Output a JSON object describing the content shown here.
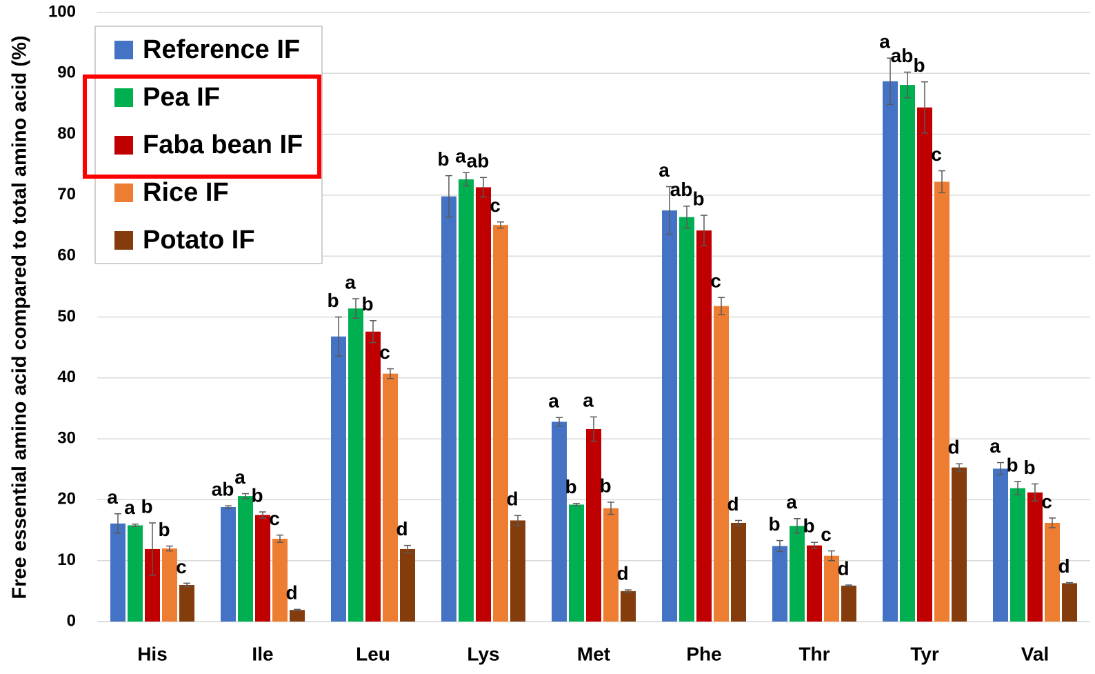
{
  "chart_data": {
    "type": "bar",
    "y_label": "Free essential amino acid compared to total amino acid (%)",
    "categories": [
      "His",
      "Ile",
      "Leu",
      "Lys",
      "Met",
      "Phe",
      "Thr",
      "Tyr",
      "Val"
    ],
    "series": [
      {
        "name": "Reference IF",
        "color": "#4472c4",
        "values": [
          16.1,
          18.8,
          46.8,
          69.8,
          32.8,
          67.5,
          12.4,
          88.7,
          25.1
        ],
        "errors": [
          1.6,
          0.2,
          3.2,
          3.4,
          0.7,
          3.9,
          0.9,
          3.8,
          1.0
        ],
        "letters": [
          "a",
          "ab",
          "b",
          "b",
          "a",
          "a",
          "b",
          "a",
          "a"
        ]
      },
      {
        "name": "Pea IF",
        "color": "#00b050",
        "values": [
          15.8,
          20.6,
          51.4,
          72.6,
          19.2,
          66.4,
          15.7,
          88.1,
          21.9
        ],
        "errors": [
          0.2,
          0.4,
          1.6,
          1.1,
          0.2,
          1.8,
          1.2,
          2.1,
          1.1
        ],
        "letters": [
          "a",
          "a",
          "a",
          "a",
          "b",
          "ab",
          "a",
          "ab",
          "b"
        ]
      },
      {
        "name": "Faba bean IF",
        "color": "#c00000",
        "values": [
          11.9,
          17.5,
          47.6,
          71.3,
          31.6,
          64.2,
          12.5,
          84.4,
          21.2
        ],
        "errors": [
          4.3,
          0.5,
          1.8,
          1.6,
          2.0,
          2.5,
          0.5,
          4.2,
          1.4
        ],
        "letters": [
          "b",
          "b",
          "b",
          "ab",
          "a",
          "b",
          "b",
          "b",
          "b"
        ]
      },
      {
        "name": "Rice IF",
        "color": "#ed7d31",
        "values": [
          12.0,
          13.6,
          40.7,
          65.1,
          18.6,
          51.8,
          10.8,
          72.2,
          16.2
        ],
        "errors": [
          0.4,
          0.6,
          0.8,
          0.5,
          1.0,
          1.4,
          0.8,
          1.8,
          0.8
        ],
        "letters": [
          "b",
          "c",
          "c",
          "c",
          "b",
          "c",
          "c",
          "c",
          "c"
        ]
      },
      {
        "name": "Potato IF",
        "color": "#843c0c",
        "values": [
          6.0,
          1.9,
          11.9,
          16.6,
          5.0,
          16.2,
          5.9,
          25.3,
          6.3
        ],
        "errors": [
          0.3,
          0.1,
          0.6,
          0.8,
          0.2,
          0.4,
          0.1,
          0.6,
          0.1
        ],
        "letters": [
          "c",
          "d",
          "d",
          "d",
          "d",
          "d",
          "d",
          "d",
          "d"
        ]
      }
    ],
    "ylim": [
      0,
      100
    ],
    "yticks": [
      0,
      10,
      20,
      30,
      40,
      50,
      60,
      70,
      80,
      90,
      100
    ],
    "grid": true,
    "legend": "top-left"
  }
}
